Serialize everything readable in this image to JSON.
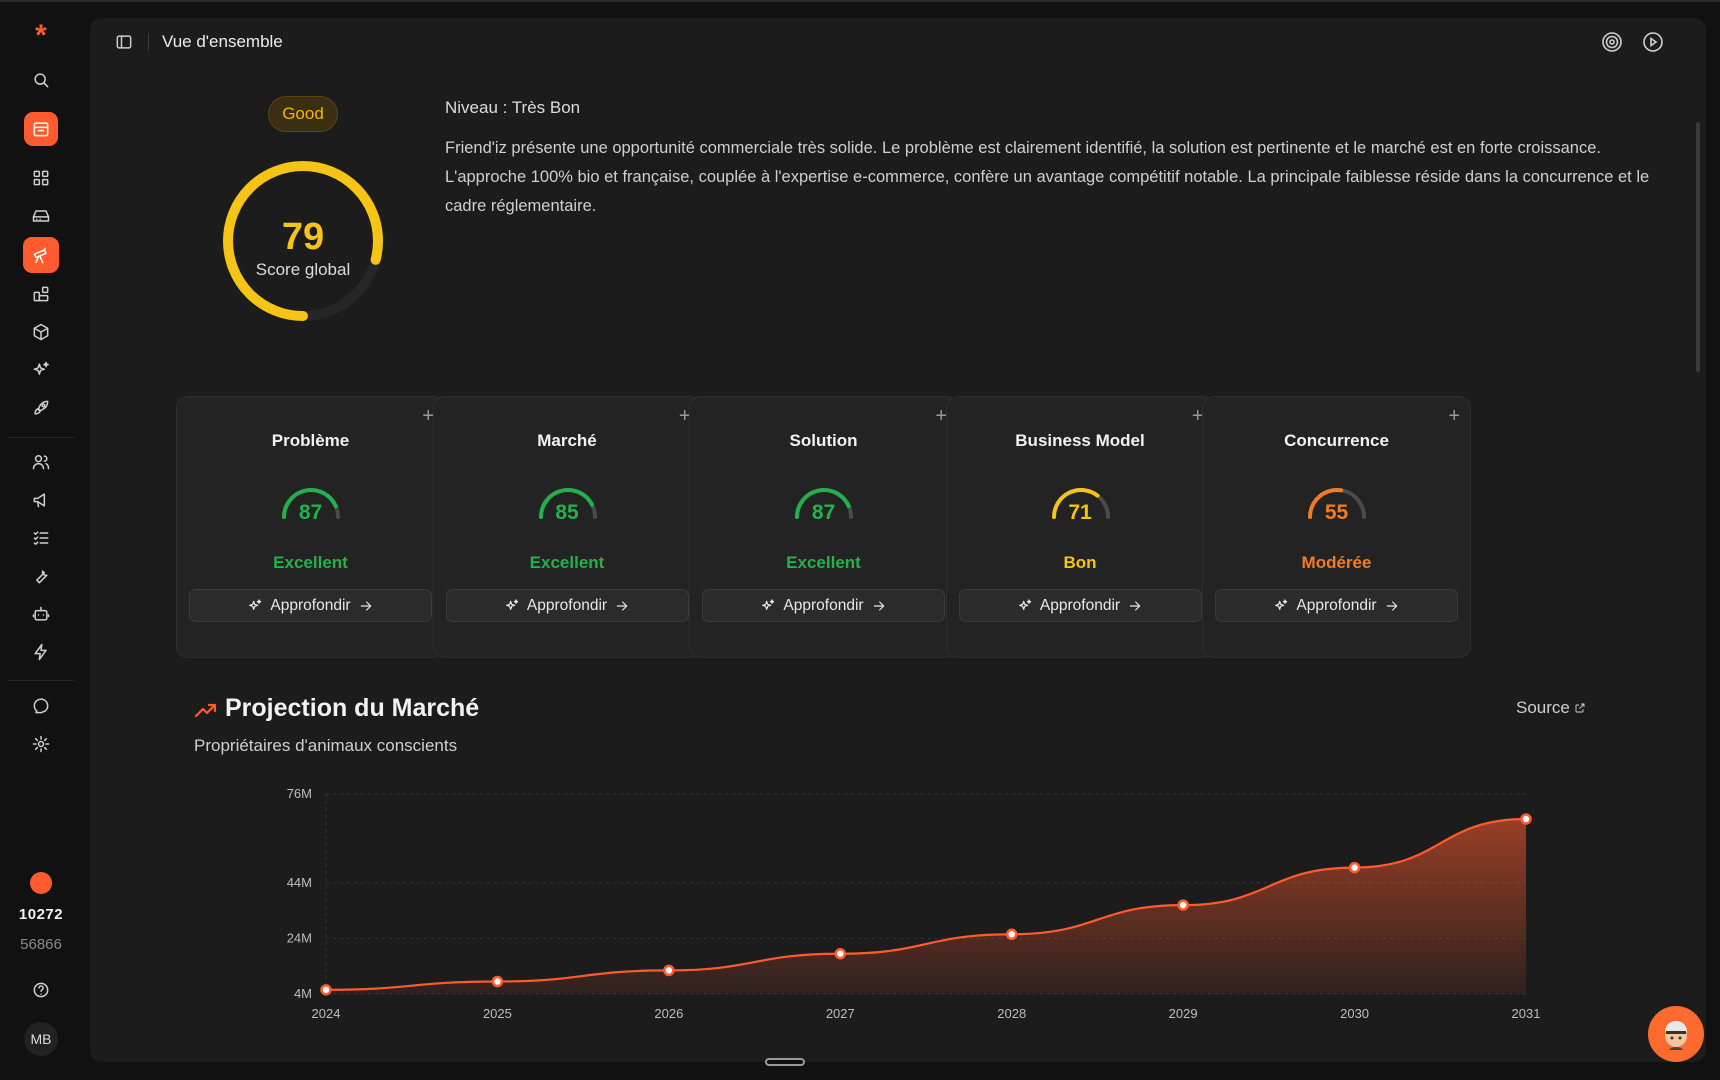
{
  "header": {
    "title": "Vue d'ensemble"
  },
  "sidebar": {
    "logo": "*",
    "items": [
      {
        "icon": "search-icon"
      },
      {
        "icon": "calendar-icon"
      },
      {
        "icon": "grid-icon"
      },
      {
        "icon": "inbox-icon"
      },
      {
        "icon": "telescope-icon"
      },
      {
        "icon": "blocks-icon"
      },
      {
        "icon": "cube-icon"
      },
      {
        "icon": "sparkles-icon"
      },
      {
        "icon": "rocket-icon"
      },
      {
        "icon": "users-icon"
      },
      {
        "icon": "megaphone-icon"
      },
      {
        "icon": "checklist-icon"
      },
      {
        "icon": "wrench-icon"
      },
      {
        "icon": "bot-icon"
      },
      {
        "icon": "zap-icon"
      },
      {
        "icon": "chat-icon"
      },
      {
        "icon": "settings-icon"
      }
    ],
    "credits_main": "10272",
    "credits_sub": "56866",
    "user_initials": "MB"
  },
  "score": {
    "badge": "Good",
    "value": "79",
    "label": "Score global",
    "fraction": 0.79,
    "color": "#f6c416"
  },
  "summary": {
    "level": "Niveau : Très Bon",
    "text": "Friend'iz présente une opportunité commerciale très solide. Le problème est clairement identifié, la solution est pertinente et le marché est en forte croissance. L'approche 100% bio et française, couplée à l'expertise e-commerce, confère un avantage compétitif notable. La principale faiblesse réside dans la concurrence et le cadre réglementaire."
  },
  "cards": [
    {
      "title": "Problème",
      "score": "87",
      "value": 87,
      "status": "Excellent",
      "color": "#22b14c",
      "button": "Approfondir"
    },
    {
      "title": "Marché",
      "score": "85",
      "value": 85,
      "status": "Excellent",
      "color": "#22b14c",
      "button": "Approfondir"
    },
    {
      "title": "Solution",
      "score": "87",
      "value": 87,
      "status": "Excellent",
      "color": "#22b14c",
      "button": "Approfondir"
    },
    {
      "title": "Business Model",
      "score": "71",
      "value": 71,
      "status": "Bon",
      "color": "#f6c416",
      "button": "Approfondir"
    },
    {
      "title": "Concurrence",
      "score": "55",
      "value": 55,
      "status": "Modérée",
      "color": "#f47b20",
      "button": "Approfondir"
    }
  ],
  "projection": {
    "title": "Projection du Marché",
    "subtitle": "Propriétaires d'animaux conscients",
    "source_label": "Source"
  },
  "chart_data": {
    "type": "area",
    "x": [
      "2024",
      "2025",
      "2026",
      "2027",
      "2028",
      "2029",
      "2030",
      "2031"
    ],
    "values": [
      5.5,
      8.5,
      12.5,
      18.5,
      25.5,
      36,
      49.5,
      67
    ],
    "y_ticks": [
      "76M",
      "44M",
      "24M",
      "4M"
    ],
    "y_tick_values": [
      76,
      44,
      24,
      4
    ],
    "ylim": [
      4,
      76
    ],
    "color": "#ff5b2e",
    "grid": "dashed"
  }
}
